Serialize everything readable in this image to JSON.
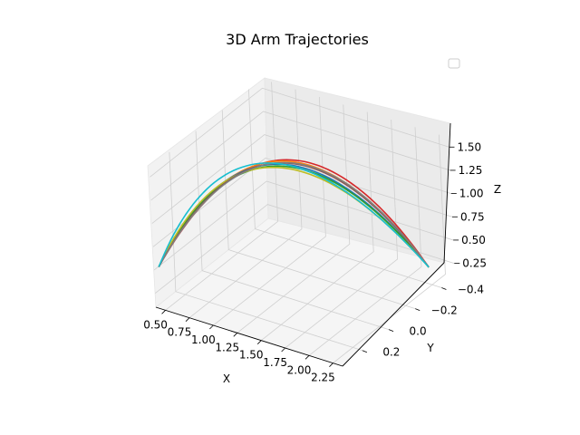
{
  "chart_data": {
    "type": "line",
    "projection": "3d",
    "title": "3D Arm Trajectories",
    "xlabel": "X",
    "ylabel": "Y",
    "zlabel": "Z",
    "xlim": [
      0.4,
      2.35
    ],
    "ylim": [
      -0.5,
      0.35
    ],
    "zlim": [
      0.1,
      1.6
    ],
    "x_ticks": [
      "0.50",
      "0.75",
      "1.00",
      "1.25",
      "1.50",
      "1.75",
      "2.00",
      "2.25"
    ],
    "y_ticks": [
      "−0.4",
      "−0.2",
      "0.0",
      "0.2"
    ],
    "z_ticks": [
      "0.25",
      "0.50",
      "0.75",
      "1.00",
      "1.25",
      "1.50"
    ],
    "legend": {
      "placement": "top-right",
      "entries": []
    },
    "grid": true,
    "series_colors": [
      "#d62728",
      "#ff7f0e",
      "#e377c2",
      "#1f77b4",
      "#2ca02c",
      "#bcbd22",
      "#8c564b",
      "#7f7f7f",
      "#17becf"
    ],
    "series": [
      {
        "start": [
          0.45,
          0.35,
          0.55
        ],
        "peak": [
          1.35,
          0.0,
          1.6
        ],
        "end": [
          2.15,
          -0.45,
          0.2
        ]
      },
      {
        "start": [
          0.45,
          0.35,
          0.55
        ],
        "peak": [
          1.3,
          0.0,
          1.57
        ],
        "end": [
          2.15,
          -0.45,
          0.2
        ]
      },
      {
        "start": [
          0.45,
          0.35,
          0.55
        ],
        "peak": [
          1.3,
          0.0,
          1.55
        ],
        "end": [
          2.15,
          -0.45,
          0.2
        ]
      },
      {
        "start": [
          0.45,
          0.35,
          0.55
        ],
        "peak": [
          1.25,
          0.0,
          1.52
        ],
        "end": [
          2.15,
          -0.45,
          0.2
        ]
      },
      {
        "start": [
          0.45,
          0.35,
          0.55
        ],
        "peak": [
          1.25,
          0.0,
          1.5
        ],
        "end": [
          2.15,
          -0.45,
          0.2
        ]
      },
      {
        "start": [
          0.45,
          0.35,
          0.55
        ],
        "peak": [
          1.2,
          0.0,
          1.47
        ],
        "end": [
          2.15,
          -0.45,
          0.2
        ]
      },
      {
        "start": [
          0.45,
          0.35,
          0.55
        ],
        "peak": [
          1.3,
          0.0,
          1.55
        ],
        "end": [
          2.15,
          -0.45,
          0.2
        ]
      },
      {
        "start": [
          0.45,
          0.35,
          0.55
        ],
        "peak": [
          1.32,
          0.0,
          1.56
        ],
        "end": [
          2.15,
          -0.45,
          0.2
        ]
      },
      {
        "start": [
          0.45,
          0.35,
          0.55
        ],
        "peak": [
          1.15,
          0.0,
          1.5
        ],
        "end": [
          2.15,
          -0.45,
          0.2
        ]
      }
    ]
  }
}
